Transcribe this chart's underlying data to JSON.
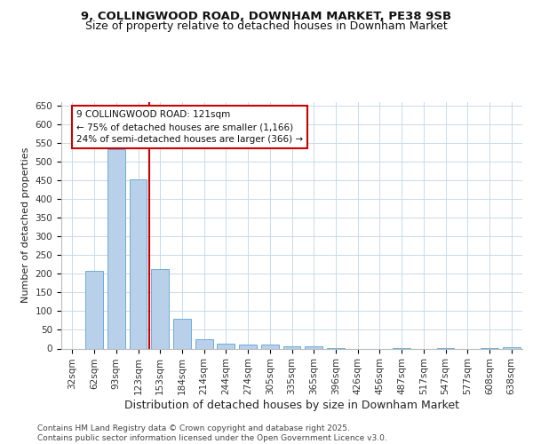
{
  "title1": "9, COLLINGWOOD ROAD, DOWNHAM MARKET, PE38 9SB",
  "title2": "Size of property relative to detached houses in Downham Market",
  "xlabel": "Distribution of detached houses by size in Downham Market",
  "ylabel": "Number of detached properties",
  "categories": [
    "32sqm",
    "62sqm",
    "93sqm",
    "123sqm",
    "153sqm",
    "184sqm",
    "214sqm",
    "244sqm",
    "274sqm",
    "305sqm",
    "335sqm",
    "365sqm",
    "396sqm",
    "426sqm",
    "456sqm",
    "487sqm",
    "517sqm",
    "547sqm",
    "577sqm",
    "608sqm",
    "638sqm"
  ],
  "values": [
    0,
    207,
    533,
    453,
    213,
    80,
    25,
    14,
    10,
    10,
    5,
    7,
    1,
    0,
    0,
    1,
    0,
    2,
    0,
    1,
    4
  ],
  "bar_color": "#b8d0ea",
  "bar_edge_color": "#6baed6",
  "bar_edge_width": 0.7,
  "red_line_x": 3.5,
  "annotation_text": "9 COLLINGWOOD ROAD: 121sqm\n← 75% of detached houses are smaller (1,166)\n24% of semi-detached houses are larger (366) →",
  "annotation_box_color": "#ffffff",
  "annotation_box_edge_color": "#cc0000",
  "red_line_color": "#cc0000",
  "ylim": [
    0,
    660
  ],
  "yticks": [
    0,
    50,
    100,
    150,
    200,
    250,
    300,
    350,
    400,
    450,
    500,
    550,
    600,
    650
  ],
  "footer": "Contains HM Land Registry data © Crown copyright and database right 2025.\nContains public sector information licensed under the Open Government Licence v3.0.",
  "bg_color": "#ffffff",
  "grid_color": "#c8daea",
  "title1_fontsize": 9.5,
  "title2_fontsize": 9,
  "xlabel_fontsize": 9,
  "ylabel_fontsize": 8,
  "tick_fontsize": 7.5,
  "annotation_fontsize": 7.5,
  "footer_fontsize": 6.5
}
